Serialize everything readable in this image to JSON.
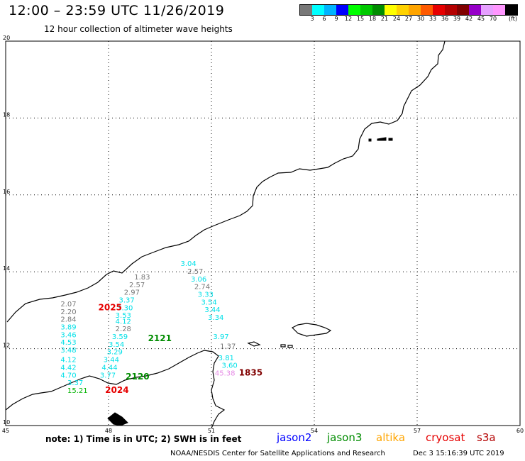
{
  "header": {
    "title": "12:00 – 23:59 UTC 11/26/2019",
    "subtitle": "12 hour collection of altimeter wave heights"
  },
  "colorbar": {
    "colors": [
      "#787878",
      "#00ffff",
      "#00b4ff",
      "#0000ff",
      "#00ff00",
      "#00c800",
      "#008c00",
      "#ffff00",
      "#ffd200",
      "#ffa500",
      "#ff5a00",
      "#e60000",
      "#b40000",
      "#800000",
      "#9600c8",
      "#e6a0ff",
      "#ff96ff",
      "#000000"
    ],
    "labels": [
      "3",
      "6",
      "9",
      "12",
      "15",
      "18",
      "21",
      "24",
      "27",
      "30",
      "33",
      "36",
      "39",
      "42",
      "45",
      "70"
    ],
    "unit": "(ft)"
  },
  "axes": {
    "lon_ticks": [
      "45",
      "48",
      "51",
      "54",
      "57",
      "60"
    ],
    "lat_ticks": [
      "20",
      "18",
      "16",
      "14",
      "12",
      "10"
    ],
    "lon_range": [
      45,
      60
    ],
    "lat_range": [
      10,
      20
    ]
  },
  "observations": {
    "gray": [
      {
        "v": "2.07",
        "lon": 46.6,
        "lat": 13.1
      },
      {
        "v": "2.20",
        "lon": 46.6,
        "lat": 12.9
      },
      {
        "v": "2.84",
        "lon": 46.6,
        "lat": 12.7
      },
      {
        "v": "1.83",
        "lon": 48.75,
        "lat": 13.8
      },
      {
        "v": "2.57",
        "lon": 48.6,
        "lat": 13.6
      },
      {
        "v": "2.97",
        "lon": 48.45,
        "lat": 13.4
      },
      {
        "v": "2.28",
        "lon": 48.2,
        "lat": 12.45
      },
      {
        "v": "2.57",
        "lon": 50.3,
        "lat": 13.95
      },
      {
        "v": "2.74",
        "lon": 50.5,
        "lat": 13.55
      },
      {
        "v": "1.37",
        "lon": 51.25,
        "lat": 12.0
      }
    ],
    "cyan": [
      {
        "v": "3.89",
        "lon": 46.6,
        "lat": 12.5
      },
      {
        "v": "3.46",
        "lon": 46.6,
        "lat": 12.3
      },
      {
        "v": "4.53",
        "lon": 46.6,
        "lat": 12.1
      },
      {
        "v": "3.48",
        "lon": 46.6,
        "lat": 11.9
      },
      {
        "v": "4.12",
        "lon": 46.6,
        "lat": 11.65
      },
      {
        "v": "4.42",
        "lon": 46.6,
        "lat": 11.45
      },
      {
        "v": "4.70",
        "lon": 46.6,
        "lat": 11.25
      },
      {
        "v": "3.37",
        "lon": 46.8,
        "lat": 11.05
      },
      {
        "v": "3.37",
        "lon": 48.3,
        "lat": 13.2
      },
      {
        "v": "3.30",
        "lon": 48.25,
        "lat": 13.0
      },
      {
        "v": "3.53",
        "lon": 48.2,
        "lat": 12.8
      },
      {
        "v": "4.12",
        "lon": 48.2,
        "lat": 12.65
      },
      {
        "v": "3.59",
        "lon": 48.1,
        "lat": 12.25
      },
      {
        "v": "3.54",
        "lon": 48.0,
        "lat": 12.05
      },
      {
        "v": "3.29",
        "lon": 47.95,
        "lat": 11.85
      },
      {
        "v": "3.44",
        "lon": 47.85,
        "lat": 11.65
      },
      {
        "v": "4.44",
        "lon": 47.8,
        "lat": 11.45
      },
      {
        "v": "3.77",
        "lon": 47.75,
        "lat": 11.25
      },
      {
        "v": "3.04",
        "lon": 50.1,
        "lat": 14.15
      },
      {
        "v": "3.06",
        "lon": 50.4,
        "lat": 13.75
      },
      {
        "v": "3.33",
        "lon": 50.6,
        "lat": 13.35
      },
      {
        "v": "3.54",
        "lon": 50.7,
        "lat": 13.15
      },
      {
        "v": "3.44",
        "lon": 50.8,
        "lat": 12.95
      },
      {
        "v": "3.34",
        "lon": 50.9,
        "lat": 12.75
      },
      {
        "v": "3.97",
        "lon": 51.05,
        "lat": 12.25
      },
      {
        "v": "3.81",
        "lon": 51.2,
        "lat": 11.7
      },
      {
        "v": "3.60",
        "lon": 51.3,
        "lat": 11.5
      }
    ],
    "green": [
      {
        "v": "15.21",
        "lon": 46.8,
        "lat": 10.85
      }
    ],
    "pink": [
      {
        "v": "45.38",
        "lon": 51.1,
        "lat": 11.3
      }
    ]
  },
  "time_labels": [
    {
      "t": "2025",
      "color": "#e60000",
      "lon": 47.7,
      "lat": 13.0
    },
    {
      "t": "2121",
      "color": "#008c00",
      "lon": 49.15,
      "lat": 12.2
    },
    {
      "t": "2120",
      "color": "#008c00",
      "lon": 48.5,
      "lat": 11.2
    },
    {
      "t": "2024",
      "color": "#e60000",
      "lon": 47.9,
      "lat": 10.85
    },
    {
      "t": "1835",
      "color": "#800000",
      "lon": 51.8,
      "lat": 11.3
    }
  ],
  "footer": {
    "note": "note: 1) Time is in UTC; 2) SWH is in feet",
    "satellites": [
      {
        "name": "jason2",
        "color": "#0000ff"
      },
      {
        "name": "jason3",
        "color": "#008c00"
      },
      {
        "name": "altika",
        "color": "#ffa500"
      },
      {
        "name": "cryosat",
        "color": "#e60000"
      },
      {
        "name": "s3a",
        "color": "#b40000"
      }
    ],
    "credit": "NOAA/NESDIS Center for Satellite Applications and Research",
    "date": "Dec  3 15:16:39 UTC 2019"
  }
}
